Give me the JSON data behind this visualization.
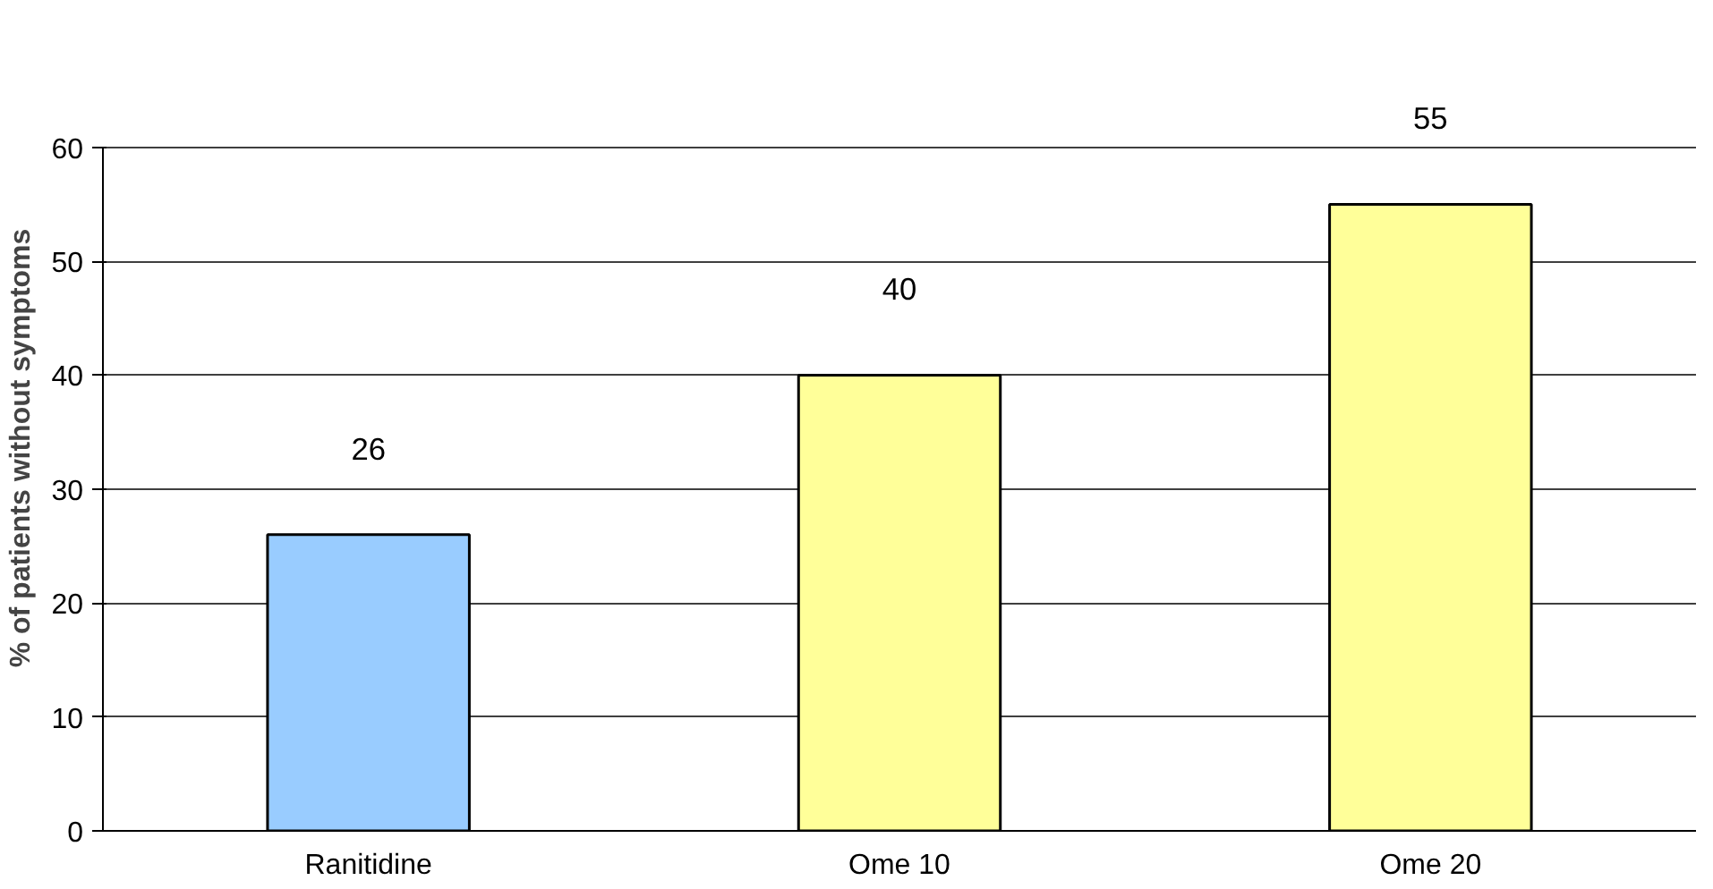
{
  "chart_data": {
    "type": "bar",
    "ylabel": "% of patients without symptoms",
    "categories": [
      "Ranitidine",
      "Ome 10",
      "Ome 20"
    ],
    "values": [
      26,
      40,
      55
    ],
    "colors": [
      "#99ccff",
      "#ffff99",
      "#ffff99"
    ],
    "ylim": [
      0,
      60
    ],
    "yticks": [
      0,
      10,
      20,
      30,
      40,
      50,
      60
    ],
    "grid": "y",
    "data_labels": true
  }
}
